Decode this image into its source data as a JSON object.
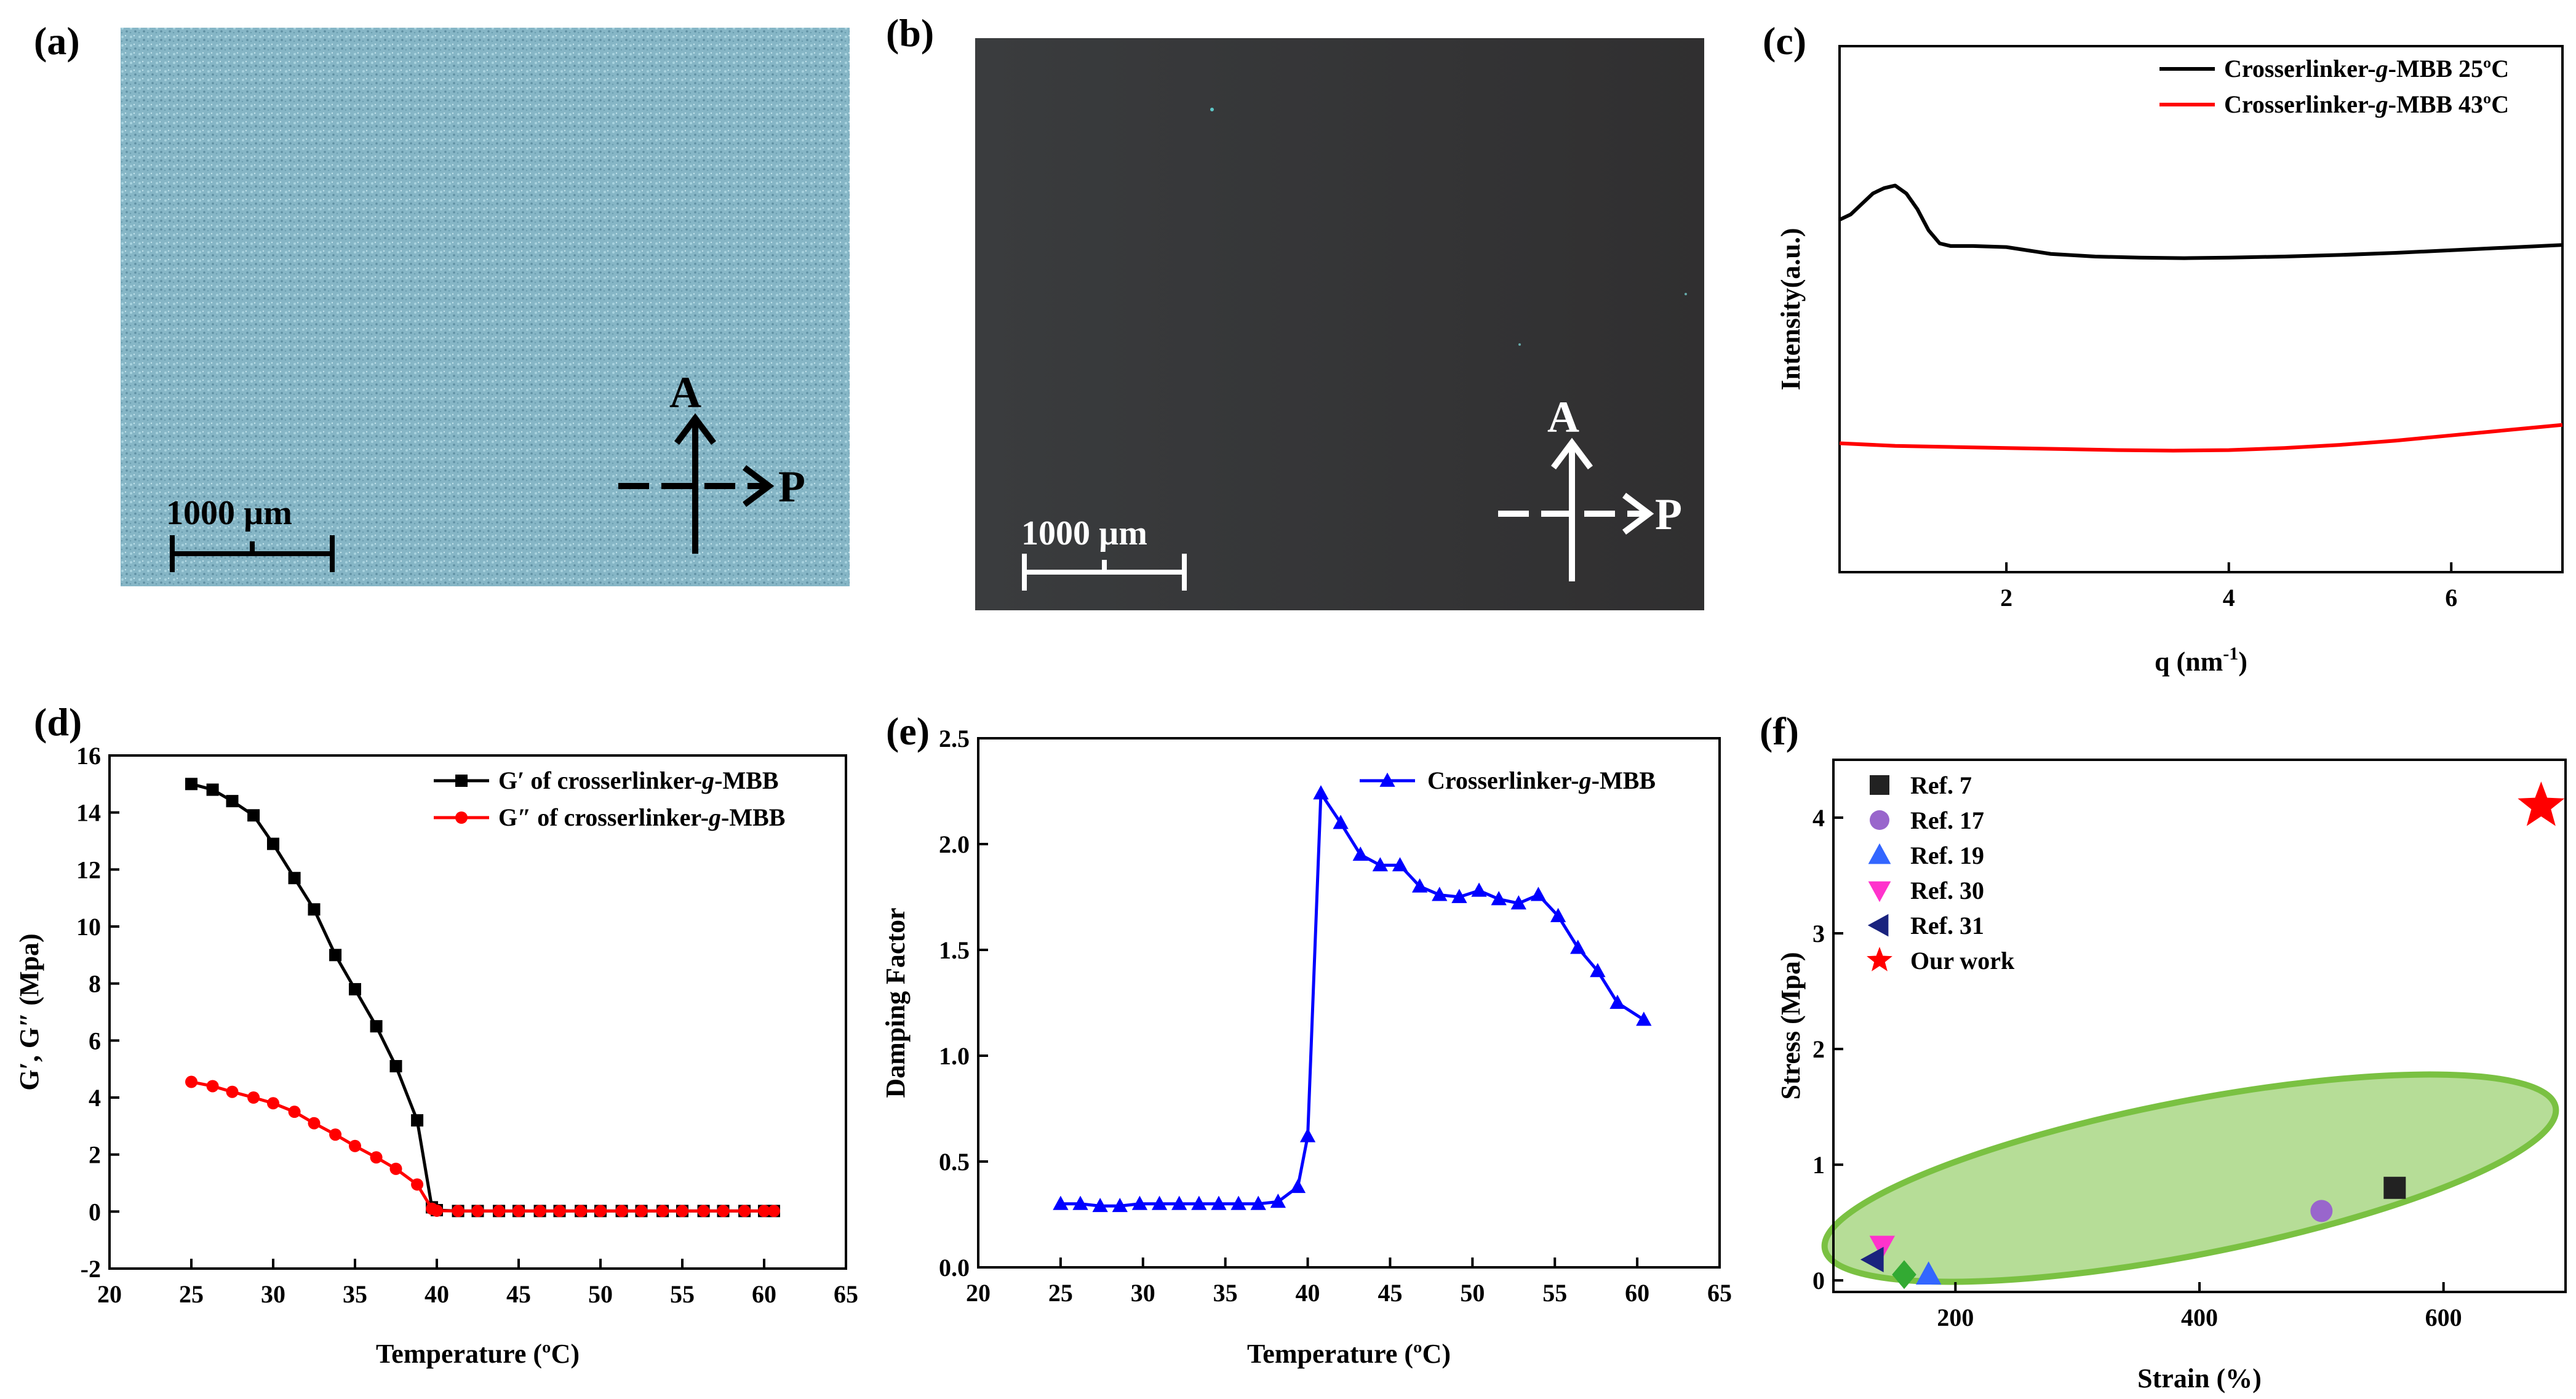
{
  "panels": {
    "a": {
      "label": "(a)",
      "scalebar": "1000 µm",
      "axis_a": "A",
      "axis_p": "P",
      "bg": "#7fb0c0"
    },
    "b": {
      "label": "(b)",
      "scalebar": "1000 µm",
      "axis_a": "A",
      "axis_p": "P",
      "bg": "#37393b"
    }
  },
  "chart_data": [
    {
      "id": "c",
      "panel": "(c)",
      "type": "line",
      "title": "",
      "xlabel": "q (nm",
      "xlabel_sup": "-1",
      "xlabel_end": ")",
      "ylabel": "Intensity(a.u.)",
      "xlim": [
        0.5,
        7.0
      ],
      "ylim": [
        0,
        1
      ],
      "xticks": [
        2,
        4,
        6
      ],
      "series": [
        {
          "name": "Crosserlinker-g-MBB 25ºC",
          "name_parts": [
            "Crosserlinker-",
            "g",
            "-MBB 25ºC"
          ],
          "color": "#000000",
          "x": [
            0.5,
            0.6,
            0.7,
            0.8,
            0.9,
            1.0,
            1.1,
            1.2,
            1.3,
            1.4,
            1.5,
            1.7,
            2.0,
            2.4,
            2.8,
            3.2,
            3.6,
            4.0,
            4.5,
            5.0,
            5.5,
            6.0,
            6.5,
            7.0
          ],
          "y": [
            0.67,
            0.68,
            0.7,
            0.72,
            0.73,
            0.735,
            0.72,
            0.69,
            0.65,
            0.625,
            0.62,
            0.62,
            0.618,
            0.605,
            0.6,
            0.598,
            0.597,
            0.598,
            0.6,
            0.603,
            0.607,
            0.612,
            0.617,
            0.622
          ]
        },
        {
          "name": "Crosserlinker-g-MBB 43ºC",
          "name_parts": [
            "Crosserlinker-",
            "g",
            "-MBB 43ºC"
          ],
          "color": "#ff0000",
          "x": [
            0.5,
            1.0,
            1.5,
            2.0,
            2.5,
            3.0,
            3.5,
            4.0,
            4.5,
            5.0,
            5.5,
            6.0,
            6.5,
            7.0
          ],
          "y": [
            0.245,
            0.24,
            0.238,
            0.236,
            0.234,
            0.232,
            0.231,
            0.232,
            0.236,
            0.242,
            0.25,
            0.26,
            0.27,
            0.28
          ]
        }
      ]
    },
    {
      "id": "d",
      "panel": "(d)",
      "type": "line",
      "xlabel": "Temperature (ºC)",
      "ylabel": "G′,  G″ (Mpa)",
      "xlim": [
        20,
        65
      ],
      "ylim": [
        -2,
        16
      ],
      "xticks": [
        20,
        25,
        30,
        35,
        40,
        45,
        50,
        55,
        60,
        65
      ],
      "yticks": [
        -2,
        0,
        2,
        4,
        6,
        8,
        10,
        12,
        14,
        16
      ],
      "series": [
        {
          "name": "G′ of crosserlinker-g-MBB",
          "name_parts": [
            "G′ of crosserlinker-",
            "g",
            "-MBB"
          ],
          "color": "#000000",
          "marker": "square",
          "x": [
            25,
            26.3,
            27.5,
            28.8,
            30,
            31.3,
            32.5,
            33.8,
            35,
            36.3,
            37.5,
            38.8,
            39.7,
            40.0,
            41.3,
            42.5,
            43.8,
            45,
            46.3,
            47.5,
            48.8,
            50,
            51.3,
            52.5,
            53.8,
            55,
            56.3,
            57.5,
            58.8,
            60,
            60.6
          ],
          "y": [
            15.0,
            14.8,
            14.4,
            13.9,
            12.9,
            11.7,
            10.6,
            9.0,
            7.8,
            6.5,
            5.1,
            3.2,
            0.15,
            0.05,
            0.02,
            0.02,
            0.02,
            0.02,
            0.02,
            0.02,
            0.02,
            0.02,
            0.02,
            0.02,
            0.02,
            0.02,
            0.02,
            0.02,
            0.02,
            0.02,
            0.02
          ]
        },
        {
          "name": "G″ of crosserlinker-g-MBB",
          "name_parts": [
            "G″ of crosserlinker-",
            "g",
            "-MBB"
          ],
          "color": "#ff0000",
          "marker": "circle",
          "x": [
            25,
            26.3,
            27.5,
            28.8,
            30,
            31.3,
            32.5,
            33.8,
            35,
            36.3,
            37.5,
            38.8,
            39.7,
            40.0,
            41.3,
            42.5,
            43.8,
            45,
            46.3,
            47.5,
            48.8,
            50,
            51.3,
            52.5,
            53.8,
            55,
            56.3,
            57.5,
            58.8,
            60,
            60.6
          ],
          "y": [
            4.55,
            4.4,
            4.2,
            4.0,
            3.8,
            3.5,
            3.1,
            2.7,
            2.3,
            1.9,
            1.5,
            0.95,
            0.1,
            0.03,
            0.02,
            0.02,
            0.02,
            0.02,
            0.02,
            0.02,
            0.02,
            0.02,
            0.02,
            0.02,
            0.02,
            0.02,
            0.02,
            0.02,
            0.02,
            0.02,
            0.02
          ]
        }
      ]
    },
    {
      "id": "e",
      "panel": "(e)",
      "type": "line",
      "xlabel": "Temperature (ºC)",
      "ylabel": "Damping Factor",
      "xlim": [
        20,
        65
      ],
      "ylim": [
        0.0,
        2.5
      ],
      "xticks": [
        20,
        25,
        30,
        35,
        40,
        45,
        50,
        55,
        60,
        65
      ],
      "yticks": [
        "0.0",
        "0.5",
        "1.0",
        "1.5",
        "2.0",
        "2.5"
      ],
      "series": [
        {
          "name": "Crosserlinker-g-MBB",
          "name_parts": [
            "Crosserlinker-",
            "g",
            "-MBB"
          ],
          "color": "#0000ff",
          "marker": "triangle-up",
          "x": [
            25,
            26.2,
            27.4,
            28.6,
            29.8,
            31,
            32.2,
            33.4,
            34.6,
            35.8,
            37,
            38.2,
            39.4,
            40,
            40.8,
            42,
            43.2,
            44.4,
            45.6,
            46.8,
            48,
            49.2,
            50.4,
            51.6,
            52.8,
            54,
            55.2,
            56.4,
            57.6,
            58.8,
            60.4
          ],
          "y": [
            0.3,
            0.3,
            0.29,
            0.29,
            0.3,
            0.3,
            0.3,
            0.3,
            0.3,
            0.3,
            0.3,
            0.31,
            0.38,
            0.62,
            2.24,
            2.1,
            1.95,
            1.9,
            1.9,
            1.8,
            1.76,
            1.75,
            1.78,
            1.74,
            1.72,
            1.76,
            1.66,
            1.51,
            1.4,
            1.25,
            1.17
          ]
        }
      ]
    },
    {
      "id": "f",
      "panel": "(f)",
      "type": "scatter",
      "xlabel": "Strain (%)",
      "ylabel": "Stress (Mpa)",
      "xlim": [
        100,
        700
      ],
      "ylim": [
        -0.1,
        4.5
      ],
      "xticks": [
        200,
        400,
        600
      ],
      "yticks": [
        0,
        1,
        2,
        3,
        4
      ],
      "ellipse_color": "#7ac142",
      "series": [
        {
          "name": "Ref. 7",
          "color": "#222222",
          "marker": "square",
          "x": [
            560
          ],
          "y": [
            0.8
          ]
        },
        {
          "name": "Ref. 17",
          "color": "#9966cc",
          "marker": "circle",
          "x": [
            500
          ],
          "y": [
            0.6
          ]
        },
        {
          "name": "Ref. 19",
          "color": "#3366ff",
          "marker": "triangle-up",
          "x": [
            178
          ],
          "y": [
            0.05
          ]
        },
        {
          "name": "Ref. 30",
          "color": "#ff33cc",
          "marker": "triangle-down",
          "x": [
            140
          ],
          "y": [
            0.3
          ]
        },
        {
          "name": "Ref. 31",
          "color": "#1a237e",
          "marker": "triangle-left",
          "x": [
            133
          ],
          "y": [
            0.18
          ]
        },
        {
          "name": "Our work",
          "color": "#ff0000",
          "marker": "star",
          "x": [
            680
          ],
          "y": [
            4.1
          ]
        }
      ],
      "extra_points": [
        {
          "color": "#33aa33",
          "marker": "diamond",
          "x": 158,
          "y": 0.05
        }
      ]
    }
  ]
}
